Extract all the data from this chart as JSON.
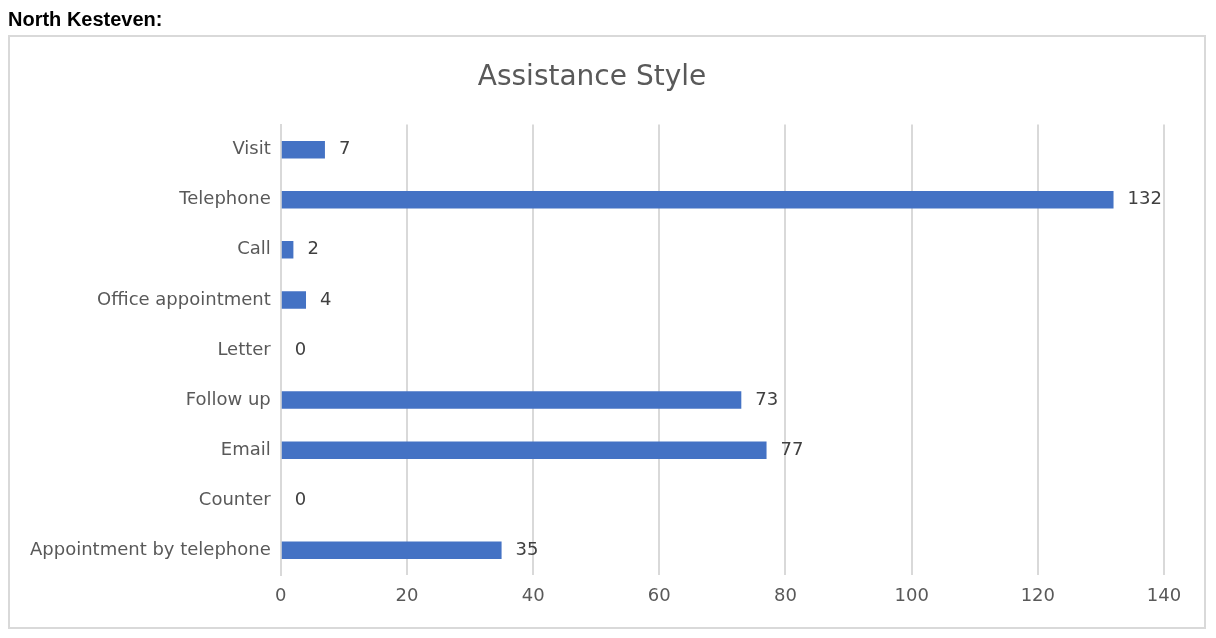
{
  "chart_data": {
    "type": "bar",
    "title": "Assistance Style",
    "annotations": [
      "North Kesteven:"
    ],
    "orientation": "horizontal",
    "categories": [
      "Visit",
      "Telephone",
      "Call",
      "Office appointment",
      "Letter",
      "Follow up",
      "Email",
      "Counter",
      "Appointment by telephone"
    ],
    "values": [
      7,
      132,
      2,
      4,
      0,
      73,
      77,
      0,
      35
    ],
    "color": "#4472c4",
    "xlim": [
      0,
      140
    ],
    "xticks": [
      0,
      20,
      40,
      60,
      80,
      100,
      120,
      140
    ],
    "grid": "x",
    "data_labels": true,
    "legend": false
  }
}
